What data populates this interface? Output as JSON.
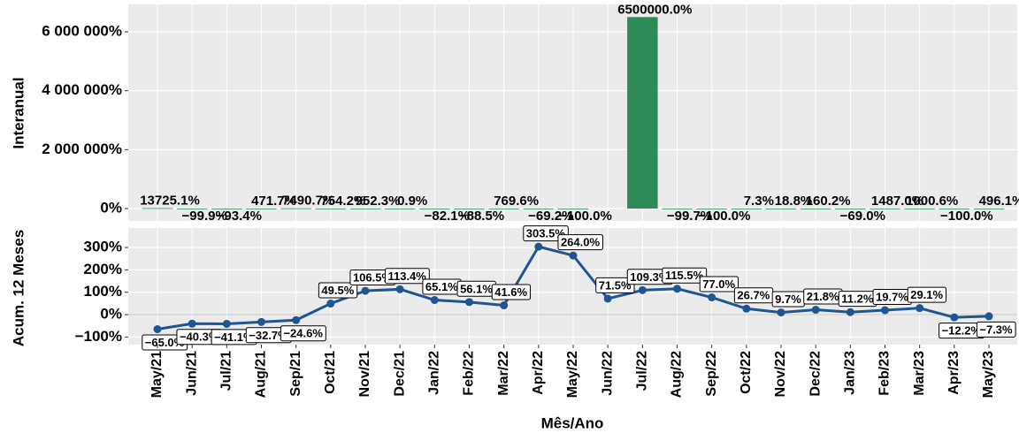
{
  "chart_data": [
    {
      "type": "bar",
      "y_label": "Interanual",
      "color": "#2e8b57",
      "values": [
        13725.1,
        -99.9,
        -93.4,
        471.7,
        7490.7,
        754.2,
        952.3,
        0.9,
        -82.1,
        -88.5,
        769.6,
        -69.2,
        -100.0,
        null,
        6500000.0,
        -99.7,
        -100.0,
        7.3,
        18.8,
        160.2,
        -69.0,
        1487.0,
        1000.6,
        -100.0,
        496.1
      ],
      "value_labels": [
        "13725.1%",
        "−99.9%",
        "−93.4%",
        "471.7%",
        "7490.7%",
        "754.2%",
        "952.3%",
        "0.9%",
        "−82.1%",
        "−88.5%",
        "769.6%",
        "−69.2%",
        "−100.0%",
        null,
        "6500000.0%",
        "−99.7%",
        "−100.0%",
        "7.3%",
        "18.8%",
        "160.2%",
        "−69.0%",
        "1487.0%",
        "1000.6%",
        "−100.0%",
        "496.1%"
      ],
      "ylim": [
        -420000,
        6930000
      ],
      "yticks": [
        {
          "value": 0,
          "label": "0%"
        },
        {
          "value": 2000000,
          "label": "2 000 000%"
        },
        {
          "value": 4000000,
          "label": "4 000 000%"
        },
        {
          "value": 6000000,
          "label": "6 000 000%"
        }
      ],
      "grid": true
    },
    {
      "type": "line",
      "y_label": "Acum. 12 Meses",
      "x_label": "Mês/Ano",
      "color": "#1f5591",
      "categories": [
        "May/21",
        "Jun/21",
        "Jul/21",
        "Aug/21",
        "Sep/21",
        "Oct/21",
        "Nov/21",
        "Dec/21",
        "Jan/22",
        "Feb/22",
        "Mar/22",
        "Apr/22",
        "May/22",
        "Jun/22",
        "Jul/22",
        "Aug/22",
        "Sep/22",
        "Oct/22",
        "Nov/22",
        "Dec/22",
        "Jan/23",
        "Feb/23",
        "Mar/23",
        "Apr/23",
        "May/23"
      ],
      "values": [
        -65.0,
        -40.3,
        -41.1,
        -32.7,
        -24.6,
        49.5,
        106.5,
        113.4,
        65.1,
        56.1,
        41.6,
        303.5,
        264.0,
        71.5,
        109.3,
        115.5,
        77.0,
        26.7,
        9.7,
        21.8,
        11.2,
        19.7,
        29.1,
        -12.2,
        -7.3
      ],
      "value_labels": [
        "−65.0%",
        "−40.3%",
        "−41.1%",
        "−32.7%",
        "−24.6%",
        "49.5%",
        "106.5%",
        "113.4%",
        "65.1%",
        "56.1%",
        "41.6%",
        "303.5%",
        "264.0%",
        "71.5%",
        "109.3%",
        "115.5%",
        "77.0%",
        "26.7%",
        "9.7%",
        "21.8%",
        "11.2%",
        "19.7%",
        "29.1%",
        "−12.2%",
        "−7.3%"
      ],
      "ylim": [
        -134,
        387
      ],
      "yticks": [
        {
          "value": -100,
          "label": "−100%"
        },
        {
          "value": 0,
          "label": "0%"
        },
        {
          "value": 100,
          "label": "100%"
        },
        {
          "value": 200,
          "label": "200%"
        },
        {
          "value": 300,
          "label": "300%"
        }
      ],
      "grid": true
    }
  ]
}
